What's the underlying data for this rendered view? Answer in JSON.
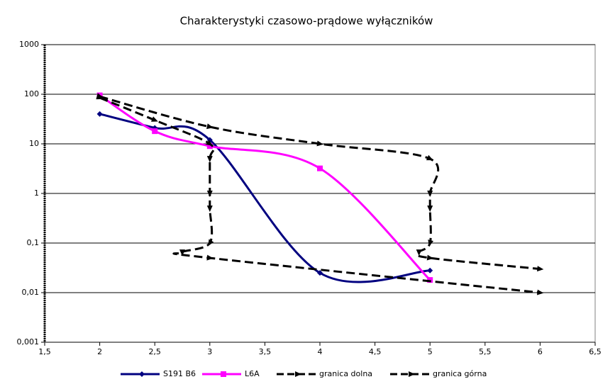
{
  "chart_data": {
    "type": "line",
    "title": "Charakterystyki czasowo-prądowe wyłączników",
    "log_y": true,
    "grid": true,
    "xlim": [
      1.5,
      6.5
    ],
    "xticks": [
      {
        "value": 1.5,
        "label": "1,5"
      },
      2,
      {
        "value": 2.5,
        "label": "2,5"
      },
      3,
      {
        "value": 3.5,
        "label": "3,5"
      },
      4,
      {
        "value": 4.5,
        "label": "4,5"
      },
      5,
      {
        "value": 5.5,
        "label": "5,5"
      },
      6,
      {
        "value": 6.5,
        "label": "6,5"
      }
    ],
    "ylim": [
      0.001,
      1000
    ],
    "yticks": [
      {
        "value": 0.001,
        "label": "0,001"
      },
      {
        "value": 0.01,
        "label": "0,01"
      },
      {
        "value": 0.1,
        "label": "0,1"
      },
      1,
      10,
      100,
      1000
    ],
    "legend": "bottom",
    "series": [
      {
        "name": "S191 B6",
        "color": "#000080",
        "marker": "diamond",
        "dash": false,
        "x": [
          2,
          2.5,
          3,
          4,
          5
        ],
        "values": [
          40,
          21,
          12,
          0.025,
          0.028
        ]
      },
      {
        "name": "L6A",
        "color": "#ff00ff",
        "marker": "square",
        "dash": false,
        "x": [
          2,
          2.5,
          3,
          4,
          5
        ],
        "values": [
          95,
          18,
          9,
          3.2,
          0.018
        ]
      },
      {
        "name": "granica dolna",
        "color": "#000000",
        "marker": "arrow",
        "dash": true,
        "x": [
          2,
          2.5,
          3,
          3,
          3,
          3,
          3,
          2.75,
          3,
          6
        ],
        "values": [
          85,
          30,
          10,
          5,
          1,
          0.5,
          0.1,
          0.065,
          0.05,
          0.01
        ]
      },
      {
        "name": "granica górna",
        "color": "#000000",
        "marker": "arrow",
        "dash": true,
        "x": [
          2,
          3,
          4,
          5,
          5,
          5,
          5,
          4.9,
          5,
          6
        ],
        "values": [
          90,
          22,
          10,
          5,
          1,
          0.5,
          0.1,
          0.065,
          0.05,
          0.03
        ]
      }
    ]
  }
}
